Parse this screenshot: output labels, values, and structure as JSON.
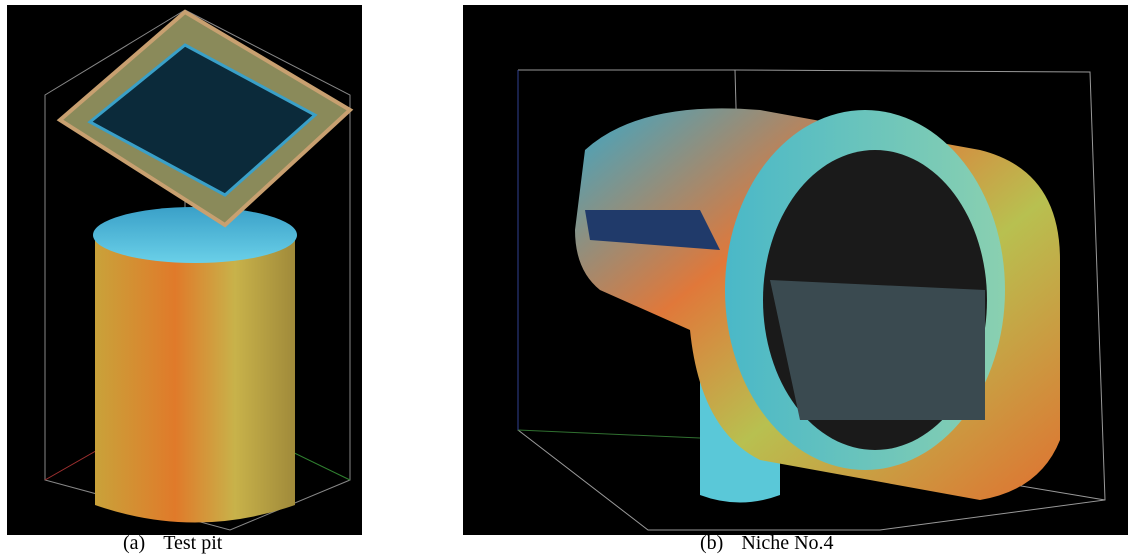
{
  "figures": [
    {
      "label": "(a)",
      "caption": "Test pit"
    },
    {
      "label": "(b)",
      "caption": "Niche No.4"
    }
  ]
}
